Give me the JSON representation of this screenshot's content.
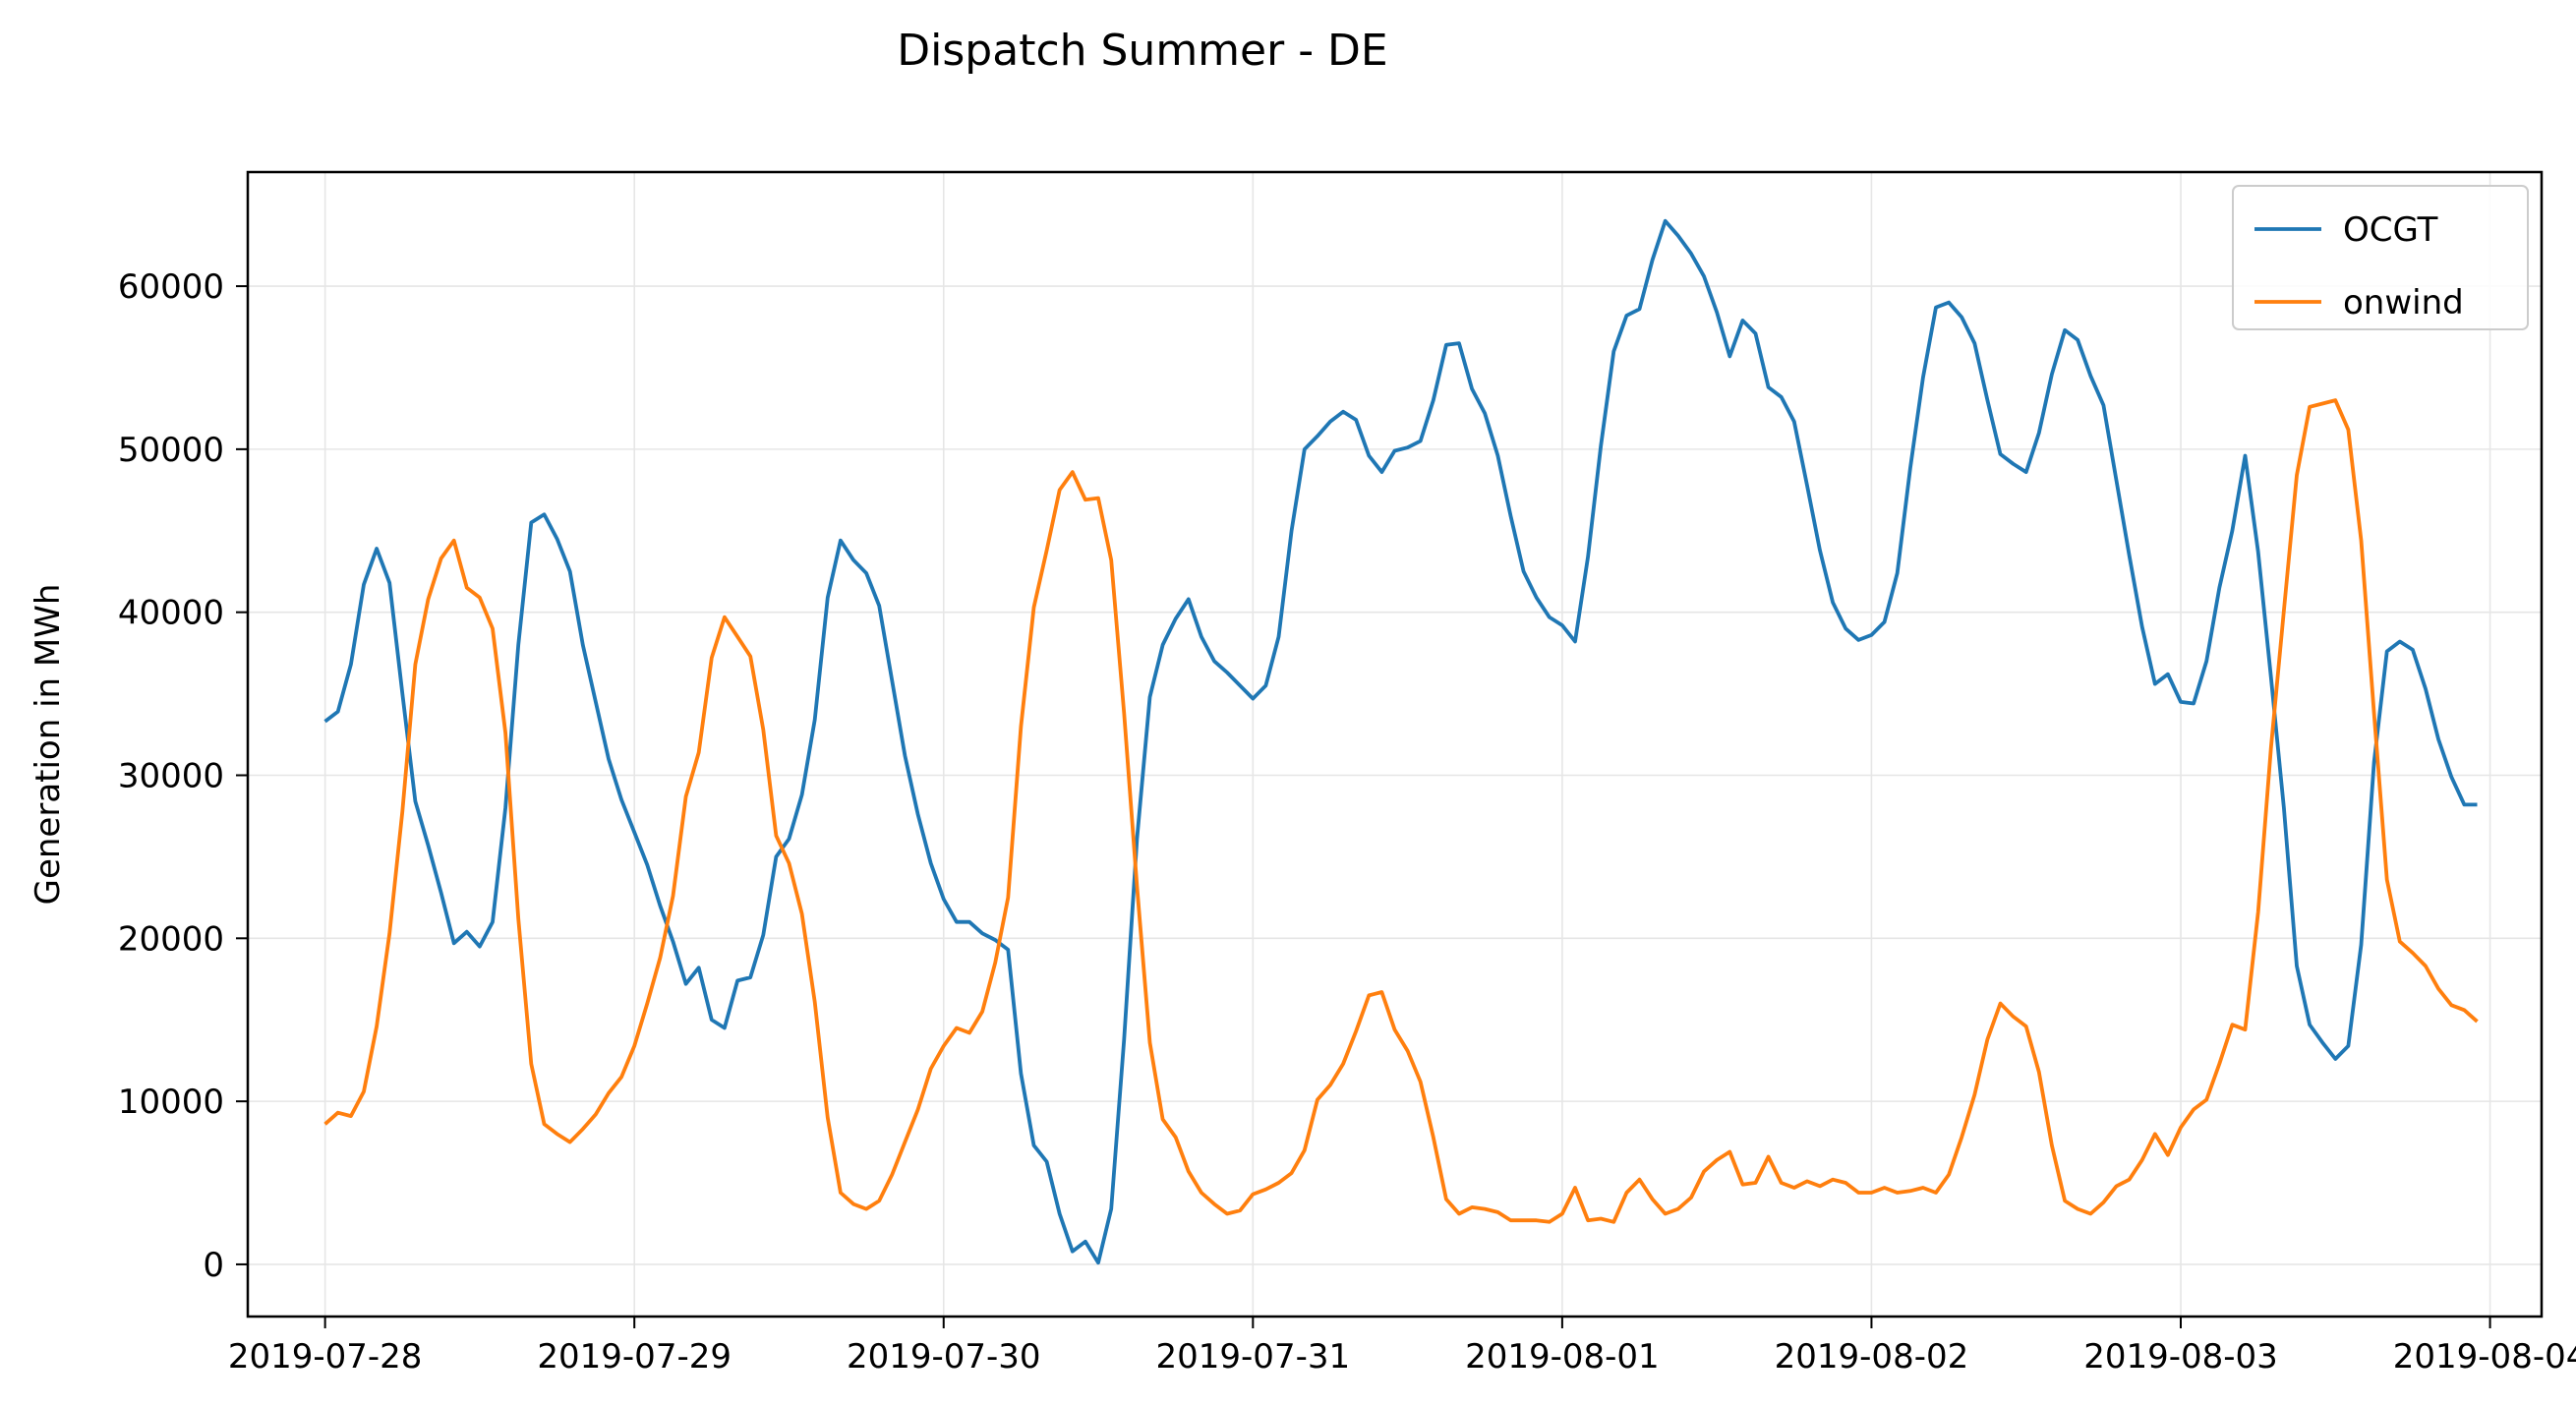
{
  "chart_data": {
    "type": "line",
    "title": "Dispatch Summer - DE",
    "xlabel": "",
    "ylabel": "Generation in MWh",
    "x_start": "2019-07-28T00:00",
    "x_step_hours": 1,
    "xlim": [
      "2019-07-27T18:00",
      "2019-08-04T04:00"
    ],
    "ylim": [
      -3200,
      67000
    ],
    "x_ticks": [
      "2019-07-28",
      "2019-07-29",
      "2019-07-30",
      "2019-07-31",
      "2019-08-01",
      "2019-08-02",
      "2019-08-03",
      "2019-08-04"
    ],
    "y_ticks": [
      0,
      10000,
      20000,
      30000,
      40000,
      50000,
      60000
    ],
    "grid": true,
    "legend_position": "top-right",
    "series": [
      {
        "name": "OCGT",
        "color": "#1f77b4",
        "values": [
          33300,
          33900,
          36800,
          41700,
          43900,
          41800,
          35000,
          28400,
          25700,
          22800,
          19700,
          20400,
          19500,
          21000,
          28000,
          38000,
          45500,
          46000,
          44500,
          42500,
          38000,
          34500,
          31000,
          28500,
          26500,
          24500,
          22000,
          19800,
          17200,
          18200,
          15000,
          14500,
          17400,
          17600,
          20200,
          25000,
          26100,
          28800,
          33400,
          40900,
          44400,
          43200,
          42400,
          40400,
          35800,
          31200,
          27600,
          24600,
          22400,
          21000,
          21000,
          20300,
          19900,
          19300,
          11700,
          7300,
          6300,
          3100,
          800,
          1400,
          100,
          3400,
          13800,
          26100,
          34800,
          38000,
          39600,
          40800,
          38500,
          37000,
          36300,
          35500,
          34700,
          35500,
          38500,
          45000,
          50000,
          50800,
          51700,
          52300,
          51800,
          49600,
          48600,
          49900,
          50100,
          50500,
          53000,
          56400,
          56500,
          53700,
          52200,
          49600,
          45900,
          42500,
          40900,
          39700,
          39200,
          38200,
          43400,
          50200,
          56000,
          58200,
          58600,
          61600,
          64000,
          63100,
          62000,
          60600,
          58400,
          55700,
          57900,
          57100,
          53800,
          53200,
          51700,
          47800,
          43800,
          40600,
          39000,
          38300,
          38600,
          39400,
          42400,
          48800,
          54400,
          58700,
          59000,
          58100,
          56500,
          53000,
          49700,
          49100,
          48600,
          51000,
          54600,
          57300,
          56700,
          54500,
          52700,
          48100,
          43500,
          39100,
          35600,
          36200,
          34500,
          34400,
          37000,
          41500,
          45000,
          49600,
          43700,
          36000,
          28000,
          18300,
          14700,
          13600,
          12600,
          13400,
          19600,
          30800,
          37600,
          38200,
          37700,
          35300,
          32200,
          29900,
          28200,
          28200
        ]
      },
      {
        "name": "onwind",
        "color": "#ff7f0e",
        "values": [
          8600,
          9300,
          9100,
          10600,
          14600,
          20300,
          27800,
          36800,
          40800,
          43300,
          44400,
          41500,
          40900,
          39000,
          32600,
          21200,
          12300,
          8600,
          8000,
          7500,
          8300,
          9200,
          10500,
          11500,
          13400,
          16000,
          18800,
          22600,
          28700,
          31400,
          37200,
          39700,
          38500,
          37300,
          32800,
          26300,
          24600,
          21500,
          16100,
          9000,
          4400,
          3700,
          3400,
          3900,
          5500,
          7500,
          9500,
          12000,
          13400,
          14500,
          14200,
          15500,
          18500,
          22500,
          33000,
          40300,
          43800,
          47500,
          48600,
          46900,
          47000,
          43200,
          33800,
          23200,
          13600,
          8900,
          7800,
          5700,
          4400,
          3700,
          3100,
          3300,
          4300,
          4600,
          5000,
          5600,
          7000,
          10100,
          11000,
          12300,
          14300,
          16500,
          16700,
          14400,
          13100,
          11200,
          7800,
          4000,
          3100,
          3500,
          3400,
          3200,
          2700,
          2700,
          2700,
          2600,
          3100,
          4700,
          2700,
          2800,
          2600,
          4400,
          5200,
          4000,
          3100,
          3400,
          4100,
          5700,
          6400,
          6900,
          4900,
          5000,
          6600,
          5000,
          4700,
          5100,
          4800,
          5200,
          5000,
          4400,
          4400,
          4700,
          4400,
          4500,
          4700,
          4400,
          5500,
          7800,
          10400,
          13800,
          16000,
          15200,
          14600,
          11800,
          7300,
          3900,
          3400,
          3100,
          3800,
          4800,
          5200,
          6400,
          8000,
          6700,
          8400,
          9500,
          10100,
          12300,
          14700,
          14400,
          21600,
          31700,
          40100,
          48400,
          52600,
          52800,
          53000,
          51200,
          44400,
          33800,
          23600,
          19800,
          19100,
          18300,
          16900,
          15900,
          15600,
          14900
        ]
      }
    ]
  }
}
